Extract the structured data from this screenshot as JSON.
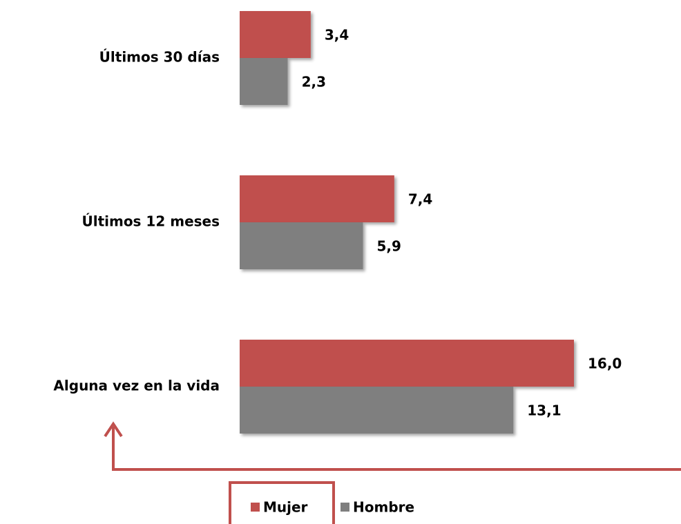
{
  "chart_data": {
    "type": "bar",
    "orientation": "horizontal",
    "categories": [
      "Últimos 30 días",
      "Últimos 12 meses",
      "Alguna vez en la vida"
    ],
    "series": [
      {
        "name": "Mujer",
        "color": "#c0504d",
        "values": [
          3.4,
          7.4,
          16.0
        ],
        "value_labels": [
          "3,4",
          "7,4",
          "16,0"
        ]
      },
      {
        "name": "Hombre",
        "color": "#7f7f7f",
        "values": [
          2.3,
          5.9,
          13.1
        ],
        "value_labels": [
          "2,3",
          "5,9",
          "13,1"
        ]
      }
    ]
  }
}
